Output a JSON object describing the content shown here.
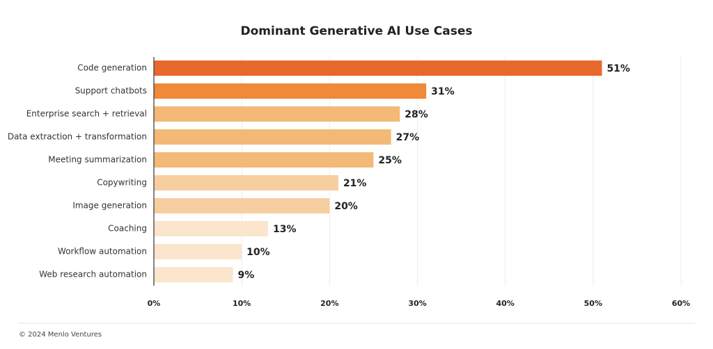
{
  "chart_data": {
    "type": "bar",
    "orientation": "horizontal",
    "title": "Dominant Generative AI Use Cases",
    "categories": [
      "Code generation",
      "Support chatbots",
      "Enterprise search + retrieval",
      "Data extraction + transformation",
      "Meeting summarization",
      "Copywriting",
      "Image generation",
      "Coaching",
      "Workflow automation",
      "Web research automation"
    ],
    "values": [
      51,
      31,
      28,
      27,
      25,
      21,
      20,
      13,
      10,
      9
    ],
    "value_labels": [
      "51%",
      "31%",
      "28%",
      "27%",
      "25%",
      "21%",
      "20%",
      "13%",
      "10%",
      "9%"
    ],
    "colors": [
      "#e9692c",
      "#f0893a",
      "#f4b976",
      "#f4b976",
      "#f4b976",
      "#f7cea0",
      "#f7cea0",
      "#fbe5cc",
      "#fbe5cc",
      "#fbe5cc"
    ],
    "xlim": [
      0,
      60
    ],
    "xticks": [
      {
        "value": 0,
        "label": "0%"
      },
      {
        "value": 10,
        "label": "10%"
      },
      {
        "value": 20,
        "label": "20%"
      },
      {
        "value": 30,
        "label": "30%"
      },
      {
        "value": 40,
        "label": "40%"
      },
      {
        "value": 50,
        "label": "50%"
      },
      {
        "value": 60,
        "label": "60%"
      }
    ],
    "grid": true
  },
  "footer": "© 2024 Menlo Ventures"
}
